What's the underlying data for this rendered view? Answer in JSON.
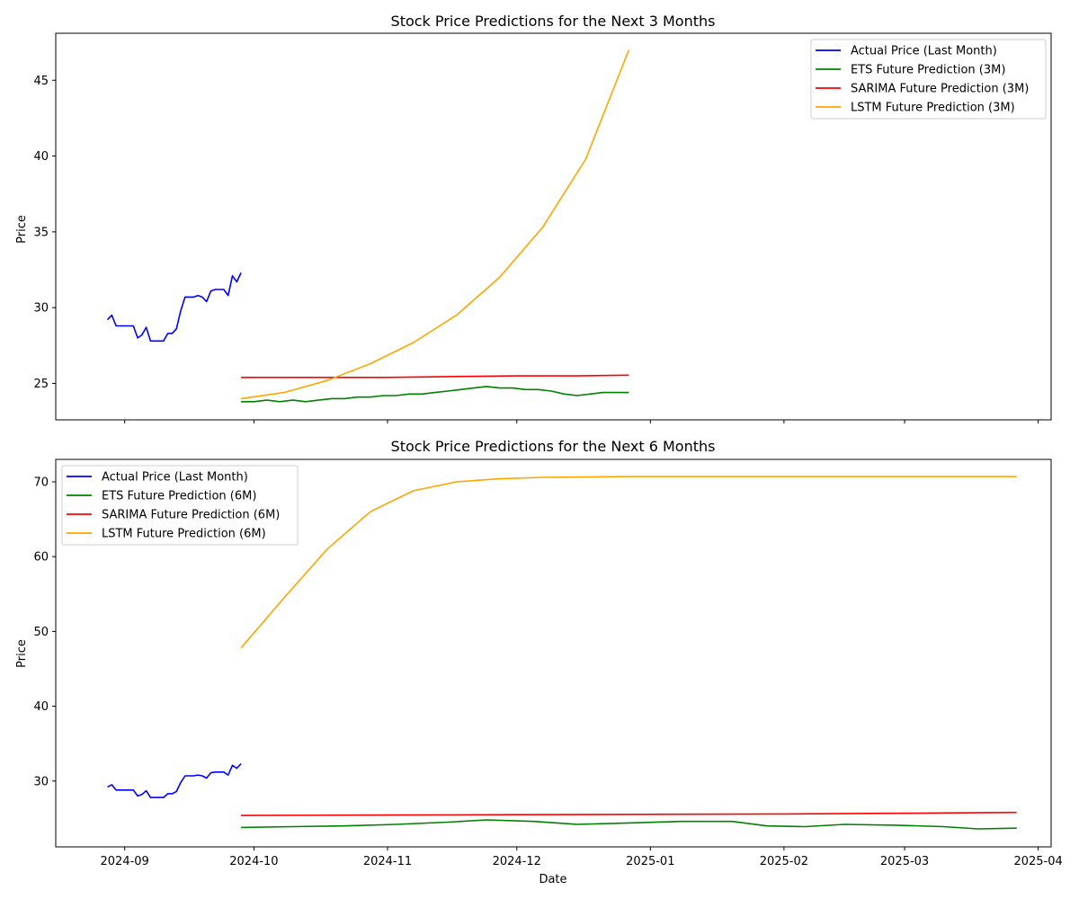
{
  "figure": {
    "background": "#ffffff"
  },
  "chart_data": [
    {
      "type": "line",
      "title": "Stock Price Predictions for the Next 3 Months",
      "xlabel": "",
      "ylabel": "Price",
      "xlim": [
        "2024-08-16",
        "2025-04-04"
      ],
      "ylim": [
        22.6,
        48.1
      ],
      "yticks": [
        25,
        30,
        35,
        40,
        45
      ],
      "xticks": [
        "2024-09-01",
        "2024-10-01",
        "2024-11-01",
        "2024-12-01",
        "2025-01-01",
        "2025-02-01",
        "2025-03-01",
        "2025-04-01"
      ],
      "xtick_labels_visible": false,
      "grid": false,
      "legend_position": "upper right",
      "series": [
        {
          "name": "Actual Price (Last Month)",
          "color": "#0000ff",
          "points": [
            [
              "2024-08-28",
              29.2
            ],
            [
              "2024-08-29",
              29.5
            ],
            [
              "2024-08-30",
              28.8
            ],
            [
              "2024-09-02",
              28.8
            ],
            [
              "2024-09-03",
              28.8
            ],
            [
              "2024-09-04",
              28.0
            ],
            [
              "2024-09-05",
              28.2
            ],
            [
              "2024-09-06",
              28.7
            ],
            [
              "2024-09-07",
              27.8
            ],
            [
              "2024-09-09",
              27.8
            ],
            [
              "2024-09-10",
              27.8
            ],
            [
              "2024-09-11",
              28.3
            ],
            [
              "2024-09-12",
              28.3
            ],
            [
              "2024-09-13",
              28.6
            ],
            [
              "2024-09-14",
              29.8
            ],
            [
              "2024-09-15",
              30.7
            ],
            [
              "2024-09-16",
              30.7
            ],
            [
              "2024-09-17",
              30.7
            ],
            [
              "2024-09-18",
              30.8
            ],
            [
              "2024-09-19",
              30.7
            ],
            [
              "2024-09-20",
              30.4
            ],
            [
              "2024-09-21",
              31.1
            ],
            [
              "2024-09-22",
              31.2
            ],
            [
              "2024-09-23",
              31.2
            ],
            [
              "2024-09-24",
              31.2
            ],
            [
              "2024-09-25",
              30.8
            ],
            [
              "2024-09-26",
              32.1
            ],
            [
              "2024-09-27",
              31.7
            ],
            [
              "2024-09-28",
              32.3
            ]
          ]
        },
        {
          "name": "ETS Future Prediction (3M)",
          "color": "#008000",
          "points": [
            [
              "2024-09-28",
              23.8
            ],
            [
              "2024-10-01",
              23.8
            ],
            [
              "2024-10-04",
              23.9
            ],
            [
              "2024-10-07",
              23.8
            ],
            [
              "2024-10-10",
              23.9
            ],
            [
              "2024-10-13",
              23.8
            ],
            [
              "2024-10-16",
              23.9
            ],
            [
              "2024-10-19",
              24.0
            ],
            [
              "2024-10-22",
              24.0
            ],
            [
              "2024-10-25",
              24.1
            ],
            [
              "2024-10-28",
              24.1
            ],
            [
              "2024-10-31",
              24.2
            ],
            [
              "2024-11-03",
              24.2
            ],
            [
              "2024-11-06",
              24.3
            ],
            [
              "2024-11-09",
              24.3
            ],
            [
              "2024-11-12",
              24.4
            ],
            [
              "2024-11-15",
              24.5
            ],
            [
              "2024-11-18",
              24.6
            ],
            [
              "2024-11-21",
              24.7
            ],
            [
              "2024-11-24",
              24.8
            ],
            [
              "2024-11-27",
              24.7
            ],
            [
              "2024-11-30",
              24.7
            ],
            [
              "2024-12-03",
              24.6
            ],
            [
              "2024-12-06",
              24.6
            ],
            [
              "2024-12-09",
              24.5
            ],
            [
              "2024-12-12",
              24.3
            ],
            [
              "2024-12-15",
              24.2
            ],
            [
              "2024-12-18",
              24.3
            ],
            [
              "2024-12-21",
              24.4
            ],
            [
              "2024-12-24",
              24.4
            ],
            [
              "2024-12-27",
              24.4
            ]
          ]
        },
        {
          "name": "SARIMA Future Prediction (3M)",
          "color": "#ff0000",
          "points": [
            [
              "2024-09-28",
              25.4
            ],
            [
              "2024-10-15",
              25.4
            ],
            [
              "2024-11-01",
              25.4
            ],
            [
              "2024-11-15",
              25.45
            ],
            [
              "2024-12-01",
              25.5
            ],
            [
              "2024-12-15",
              25.5
            ],
            [
              "2024-12-27",
              25.55
            ]
          ]
        },
        {
          "name": "LSTM Future Prediction (3M)",
          "color": "#ffa500",
          "points": [
            [
              "2024-09-28",
              24.0
            ],
            [
              "2024-10-08",
              24.4
            ],
            [
              "2024-10-18",
              25.2
            ],
            [
              "2024-10-28",
              26.3
            ],
            [
              "2024-11-07",
              27.7
            ],
            [
              "2024-11-17",
              29.5
            ],
            [
              "2024-11-27",
              32.0
            ],
            [
              "2024-12-07",
              35.3
            ],
            [
              "2024-12-17",
              39.8
            ],
            [
              "2024-12-27",
              47.0
            ]
          ]
        }
      ]
    },
    {
      "type": "line",
      "title": "Stock Price Predictions for the Next 6 Months",
      "xlabel": "Date",
      "ylabel": "Price",
      "xlim": [
        "2024-08-16",
        "2025-04-04"
      ],
      "ylim": [
        21.2,
        73.0
      ],
      "yticks": [
        30,
        40,
        50,
        60,
        70
      ],
      "xticks": [
        "2024-09-01",
        "2024-10-01",
        "2024-11-01",
        "2024-12-01",
        "2025-01-01",
        "2025-02-01",
        "2025-03-01",
        "2025-04-01"
      ],
      "xtick_labels": [
        "2024-09",
        "2024-10",
        "2024-11",
        "2024-12",
        "2025-01",
        "2025-02",
        "2025-03",
        "2025-04"
      ],
      "grid": false,
      "legend_position": "upper left",
      "series": [
        {
          "name": "Actual Price (Last Month)",
          "color": "#0000ff",
          "points": [
            [
              "2024-08-28",
              29.2
            ],
            [
              "2024-08-29",
              29.5
            ],
            [
              "2024-08-30",
              28.8
            ],
            [
              "2024-09-02",
              28.8
            ],
            [
              "2024-09-03",
              28.8
            ],
            [
              "2024-09-04",
              28.0
            ],
            [
              "2024-09-05",
              28.2
            ],
            [
              "2024-09-06",
              28.7
            ],
            [
              "2024-09-07",
              27.8
            ],
            [
              "2024-09-09",
              27.8
            ],
            [
              "2024-09-10",
              27.8
            ],
            [
              "2024-09-11",
              28.3
            ],
            [
              "2024-09-12",
              28.3
            ],
            [
              "2024-09-13",
              28.6
            ],
            [
              "2024-09-14",
              29.8
            ],
            [
              "2024-09-15",
              30.7
            ],
            [
              "2024-09-16",
              30.7
            ],
            [
              "2024-09-17",
              30.7
            ],
            [
              "2024-09-18",
              30.8
            ],
            [
              "2024-09-19",
              30.7
            ],
            [
              "2024-09-20",
              30.4
            ],
            [
              "2024-09-21",
              31.1
            ],
            [
              "2024-09-22",
              31.2
            ],
            [
              "2024-09-23",
              31.2
            ],
            [
              "2024-09-24",
              31.2
            ],
            [
              "2024-09-25",
              30.8
            ],
            [
              "2024-09-26",
              32.1
            ],
            [
              "2024-09-27",
              31.7
            ],
            [
              "2024-09-28",
              32.3
            ]
          ]
        },
        {
          "name": "ETS Future Prediction (6M)",
          "color": "#008000",
          "points": [
            [
              "2024-09-28",
              23.8
            ],
            [
              "2024-10-10",
              23.9
            ],
            [
              "2024-10-22",
              24.0
            ],
            [
              "2024-11-03",
              24.2
            ],
            [
              "2024-11-15",
              24.5
            ],
            [
              "2024-11-24",
              24.8
            ],
            [
              "2024-12-05",
              24.6
            ],
            [
              "2024-12-15",
              24.2
            ],
            [
              "2024-12-27",
              24.4
            ],
            [
              "2025-01-08",
              24.6
            ],
            [
              "2025-01-20",
              24.6
            ],
            [
              "2025-01-28",
              24.0
            ],
            [
              "2025-02-06",
              23.9
            ],
            [
              "2025-02-15",
              24.2
            ],
            [
              "2025-02-27",
              24.1
            ],
            [
              "2025-03-10",
              23.9
            ],
            [
              "2025-03-18",
              23.6
            ],
            [
              "2025-03-27",
              23.7
            ]
          ]
        },
        {
          "name": "SARIMA Future Prediction (6M)",
          "color": "#ff0000",
          "points": [
            [
              "2024-09-28",
              25.4
            ],
            [
              "2024-11-01",
              25.45
            ],
            [
              "2024-12-01",
              25.5
            ],
            [
              "2025-01-01",
              25.55
            ],
            [
              "2025-02-01",
              25.6
            ],
            [
              "2025-03-01",
              25.7
            ],
            [
              "2025-03-27",
              25.8
            ]
          ]
        },
        {
          "name": "LSTM Future Prediction (6M)",
          "color": "#ffa500",
          "points": [
            [
              "2024-09-28",
              47.8
            ],
            [
              "2024-10-08",
              54.5
            ],
            [
              "2024-10-18",
              61.0
            ],
            [
              "2024-10-28",
              66.0
            ],
            [
              "2024-11-07",
              68.8
            ],
            [
              "2024-11-17",
              70.0
            ],
            [
              "2024-11-27",
              70.4
            ],
            [
              "2024-12-07",
              70.6
            ],
            [
              "2024-12-27",
              70.7
            ],
            [
              "2025-02-01",
              70.7
            ],
            [
              "2025-03-27",
              70.7
            ]
          ]
        }
      ]
    }
  ]
}
